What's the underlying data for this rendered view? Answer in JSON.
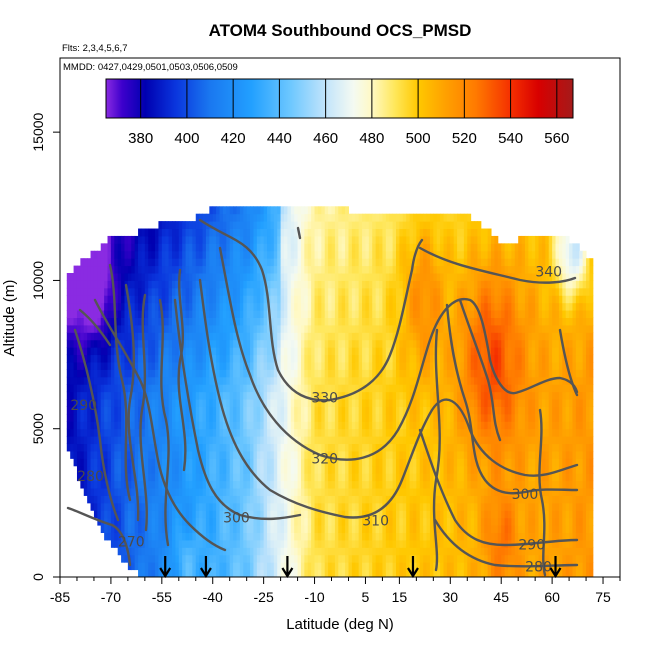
{
  "chart_data": {
    "type": "heatmap",
    "title": "ATOM4 Southbound OCS_PMSD",
    "subtitle_lines": [
      "Flts: 2,3,4,5,6,7",
      "MMDD: 0427,0429,0501,0503,0506,0509"
    ],
    "xlabel": "Latitude (deg N)",
    "ylabel": "Altitude (m)",
    "xlim": [
      -85,
      80
    ],
    "ylim": [
      0,
      17500
    ],
    "x_ticks": [
      -85,
      -70,
      -55,
      -40,
      -25,
      -10,
      5,
      15,
      30,
      45,
      60,
      75
    ],
    "y_ticks": [
      0,
      5000,
      10000,
      15000
    ],
    "colorbar": {
      "min": 365,
      "max": 567,
      "ticks": [
        380,
        400,
        420,
        440,
        460,
        480,
        500,
        520,
        540,
        560
      ],
      "color_stops": [
        {
          "v": 365,
          "c": "#8a2be2"
        },
        {
          "v": 372,
          "c": "#3d00cc"
        },
        {
          "v": 382,
          "c": "#0000b0"
        },
        {
          "v": 395,
          "c": "#0a35dd"
        },
        {
          "v": 410,
          "c": "#1a78f0"
        },
        {
          "v": 428,
          "c": "#22a0ff"
        },
        {
          "v": 445,
          "c": "#6ec8ff"
        },
        {
          "v": 460,
          "c": "#c2e4fb"
        },
        {
          "v": 472,
          "c": "#f4faf2"
        },
        {
          "v": 480,
          "c": "#fff9c4"
        },
        {
          "v": 490,
          "c": "#ffe75a"
        },
        {
          "v": 500,
          "c": "#ffc800"
        },
        {
          "v": 512,
          "c": "#ffa000"
        },
        {
          "v": 525,
          "c": "#ff7a00"
        },
        {
          "v": 540,
          "c": "#f53000"
        },
        {
          "v": 552,
          "c": "#d80000"
        },
        {
          "v": 567,
          "c": "#a51a1a"
        }
      ]
    },
    "contour_labels": [
      {
        "text": "340",
        "lat": 59,
        "alt": 10300
      },
      {
        "text": "330",
        "lat": -7,
        "alt": 6050
      },
      {
        "text": "320",
        "lat": -7,
        "alt": 4000
      },
      {
        "text": "310",
        "lat": 8,
        "alt": 1900
      },
      {
        "text": "300",
        "lat": 52,
        "alt": 2800
      },
      {
        "text": "300",
        "lat": -33,
        "alt": 2000
      },
      {
        "text": "290",
        "lat": -78,
        "alt": 5800
      },
      {
        "text": "290",
        "lat": 54,
        "alt": 1100
      },
      {
        "text": "280",
        "lat": -76,
        "alt": 3400
      },
      {
        "text": "280",
        "lat": 56,
        "alt": 350
      },
      {
        "text": "270",
        "lat": -64,
        "alt": 1200
      }
    ],
    "profile_markers_lat": [
      -54,
      -42,
      -18,
      19,
      61
    ],
    "field": {
      "description": "OCS mixing ratio (pptv) vs latitude and altitude, estimated",
      "lat_range": [
        -83,
        72
      ],
      "alt_top_by_lat": [
        [
          -83,
          10000
        ],
        [
          -78,
          10600
        ],
        [
          -70,
          11300
        ],
        [
          -62,
          11500
        ],
        [
          -55,
          11800
        ],
        [
          -45,
          12000
        ],
        [
          -38,
          12500
        ],
        [
          -20,
          12500
        ],
        [
          -10,
          12300
        ],
        [
          10,
          12200
        ],
        [
          25,
          12200
        ],
        [
          36,
          12000
        ],
        [
          45,
          11200
        ],
        [
          55,
          11300
        ],
        [
          65,
          11300
        ],
        [
          72,
          10500
        ]
      ],
      "alt_bottom_by_lat": [
        [
          -83,
          4500
        ],
        [
          -78,
          3000
        ],
        [
          -72,
          1500
        ],
        [
          -65,
          500
        ],
        [
          -60,
          0
        ],
        [
          72,
          0
        ]
      ]
    }
  }
}
